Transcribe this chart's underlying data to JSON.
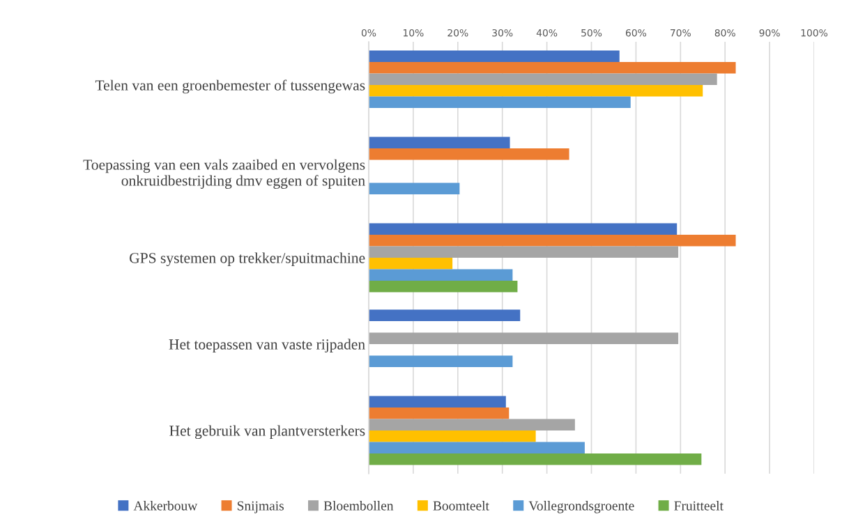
{
  "chart_data": {
    "type": "bar",
    "orientation": "horizontal",
    "categories": [
      "Telen van een groenbemester of tussengewas",
      "Toepassing van een vals zaaibed en vervolgens\nonkruidbestrijding dmv eggen of spuiten",
      "GPS systemen op trekker/spuitmachine",
      "Het toepassen van vaste rijpaden",
      "Het gebruik van plantversterkers"
    ],
    "series": [
      {
        "name": "Akkerbouw",
        "color": "#4472c4",
        "values": [
          56.3,
          31.7,
          69.2,
          34.0,
          30.8
        ]
      },
      {
        "name": "Snijmais",
        "color": "#ed7d31",
        "values": [
          82.4,
          45.0,
          82.4,
          null,
          31.5
        ]
      },
      {
        "name": "Bloembollen",
        "color": "#a5a5a5",
        "values": [
          78.2,
          null,
          69.5,
          69.5,
          46.3
        ]
      },
      {
        "name": "Boomteelt",
        "color": "#ffc000",
        "values": [
          75.0,
          null,
          18.8,
          null,
          37.5
        ]
      },
      {
        "name": "Vollegrondsgroente",
        "color": "#5b9bd5",
        "values": [
          58.8,
          20.4,
          32.3,
          32.3,
          48.5
        ]
      },
      {
        "name": "Fruitteelt",
        "color": "#70ad47",
        "values": [
          null,
          null,
          33.4,
          null,
          74.7
        ]
      }
    ],
    "xlim": [
      0,
      100
    ],
    "xticks": [
      {
        "value": 0,
        "label": "0%"
      },
      {
        "value": 10,
        "label": "10%"
      },
      {
        "value": 20,
        "label": "20%"
      },
      {
        "value": 30,
        "label": "30%"
      },
      {
        "value": 40,
        "label": "40%"
      },
      {
        "value": 50,
        "label": "50%"
      },
      {
        "value": 60,
        "label": "60%"
      },
      {
        "value": 70,
        "label": "70%"
      },
      {
        "value": 80,
        "label": "80%"
      },
      {
        "value": 90,
        "label": "90%"
      },
      {
        "value": 100,
        "label": "100%"
      }
    ],
    "grid": "x",
    "legend": "bottom"
  }
}
